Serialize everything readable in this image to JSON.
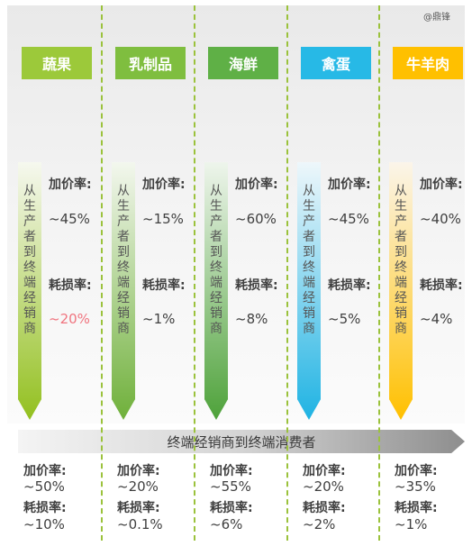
{
  "watermark": "@鼎锋",
  "flow_label": [
    "从",
    "生",
    "产",
    "者",
    "到",
    "终",
    "端",
    "经",
    "销",
    "商"
  ],
  "bottom_stage_title": "终端经销商到终端消费者",
  "categories": [
    {
      "name": "蔬果",
      "color": "#9cc93a",
      "arrow_gradient": [
        "#f6f8ef",
        "#93c01f"
      ],
      "markup_label": "加价率:",
      "markup_value": "~45%",
      "loss_label": "耗损率:",
      "loss_value": "~20%",
      "loss_highlight": true,
      "retail_markup_label": "加价率:",
      "retail_markup_value": "~50%",
      "retail_loss_label": "耗损率:",
      "retail_loss_value": "~10%"
    },
    {
      "name": "乳制品",
      "color": "#7fbe3f",
      "arrow_gradient": [
        "#f3f7ee",
        "#6fb03a"
      ],
      "markup_label": "加价率:",
      "markup_value": "~15%",
      "loss_label": "耗损率:",
      "loss_value": "~1%",
      "loss_highlight": false,
      "retail_markup_label": "加价率:",
      "retail_markup_value": "~20%",
      "retail_loss_label": "耗损率:",
      "retail_loss_value": "~0.1%"
    },
    {
      "name": "海鲜",
      "color": "#5fb046",
      "arrow_gradient": [
        "#eef5ec",
        "#4ea23a"
      ],
      "markup_label": "加价率:",
      "markup_value": "~60%",
      "loss_label": "耗损率:",
      "loss_value": "~8%",
      "loss_highlight": false,
      "retail_markup_label": "加价率:",
      "retail_markup_value": "~55%",
      "retail_loss_label": "耗损率:",
      "retail_loss_value": "~6%"
    },
    {
      "name": "禽蛋",
      "color": "#27b9e6",
      "arrow_gradient": [
        "#eef7fb",
        "#1fb3e3"
      ],
      "markup_label": "加价率:",
      "markup_value": "~45%",
      "loss_label": "耗损率:",
      "loss_value": "~5%",
      "loss_highlight": false,
      "retail_markup_label": "加价率:",
      "retail_markup_value": "~20%",
      "retail_loss_label": "耗损率:",
      "retail_loss_value": "~2%"
    },
    {
      "name": "牛羊肉",
      "color": "#ffc000",
      "arrow_gradient": [
        "#fbf5ea",
        "#ffc000"
      ],
      "markup_label": "加价率:",
      "markup_value": "~40%",
      "loss_label": "耗损率:",
      "loss_value": "~4%",
      "loss_highlight": false,
      "retail_markup_label": "加价率:",
      "retail_markup_value": "~35%",
      "retail_loss_label": "耗损率:",
      "retail_loss_value": "~1%"
    }
  ],
  "highlight_color": "#f0747f"
}
